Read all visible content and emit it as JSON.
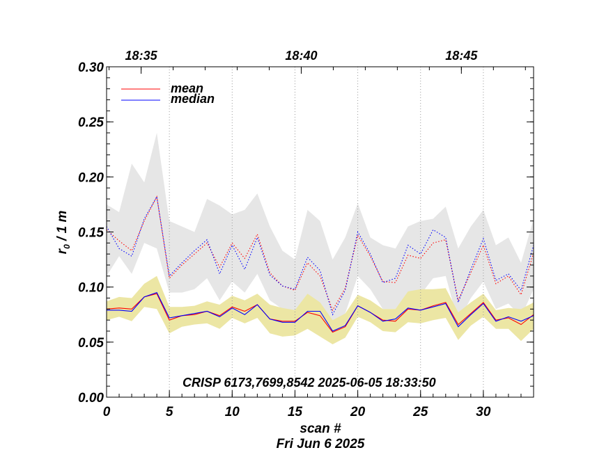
{
  "chart_data": {
    "type": "line",
    "ylabel_main": "r",
    "ylabel_sub": "0",
    "ylabel_rest": " / 1 m",
    "xlabel": "scan #",
    "date_label": "Fri Jun  6 2025",
    "annotation": "CRISP 6173,7699,8542 2025-06-05 18:33:50",
    "xlim": [
      0,
      34
    ],
    "ylim": [
      0.0,
      0.3
    ],
    "x_ticks": [
      0,
      5,
      10,
      15,
      20,
      25,
      30
    ],
    "x_tick_labels": [
      "0",
      "5",
      "10",
      "15",
      "20",
      "25",
      "30"
    ],
    "y_ticks": [
      0.0,
      0.05,
      0.1,
      0.15,
      0.2,
      0.25,
      0.3
    ],
    "y_tick_labels": [
      "0.00",
      "0.05",
      "0.10",
      "0.15",
      "0.20",
      "0.25",
      "0.30"
    ],
    "top_axis": [
      {
        "x": 2.75,
        "label": "18:35"
      },
      {
        "x": 15.5,
        "label": "18:40"
      },
      {
        "x": 28.25,
        "label": "18:45"
      }
    ],
    "vertical_dotted_lines": [
      5,
      10,
      15,
      20,
      25,
      30
    ],
    "legend": [
      {
        "name": "mean",
        "color": "#ff0000"
      },
      {
        "name": "median",
        "color": "#0000ff"
      }
    ],
    "x": [
      0,
      1,
      2,
      3,
      4,
      5,
      6,
      7,
      8,
      9,
      10,
      11,
      12,
      13,
      14,
      15,
      16,
      17,
      18,
      19,
      20,
      21,
      22,
      23,
      24,
      25,
      26,
      27,
      28,
      29,
      30,
      31,
      32,
      33,
      34
    ],
    "series": [
      {
        "name": "mean (upper)",
        "color": "#ff0000",
        "style": "dotted",
        "values": [
          0.152,
          0.142,
          0.133,
          0.16,
          0.182,
          0.108,
          0.12,
          0.13,
          0.14,
          0.118,
          0.14,
          0.126,
          0.148,
          0.113,
          0.101,
          0.097,
          0.122,
          0.11,
          0.079,
          0.099,
          0.147,
          0.128,
          0.105,
          0.104,
          0.129,
          0.126,
          0.14,
          0.143,
          0.088,
          0.113,
          0.138,
          0.103,
          0.11,
          0.093,
          0.131
        ]
      },
      {
        "name": "median (upper)",
        "color": "#0000ff",
        "style": "dotted",
        "values": [
          0.155,
          0.135,
          0.128,
          0.162,
          0.182,
          0.11,
          0.122,
          0.133,
          0.143,
          0.112,
          0.138,
          0.116,
          0.145,
          0.111,
          0.101,
          0.098,
          0.127,
          0.115,
          0.075,
          0.097,
          0.15,
          0.13,
          0.104,
          0.108,
          0.138,
          0.13,
          0.152,
          0.145,
          0.086,
          0.116,
          0.144,
          0.106,
          0.112,
          0.097,
          0.138
        ]
      },
      {
        "name": "mean",
        "color": "#ff0000",
        "style": "solid",
        "values": [
          0.08,
          0.081,
          0.08,
          0.091,
          0.094,
          0.07,
          0.074,
          0.075,
          0.078,
          0.074,
          0.082,
          0.078,
          0.084,
          0.071,
          0.069,
          0.069,
          0.077,
          0.074,
          0.059,
          0.064,
          0.083,
          0.077,
          0.07,
          0.069,
          0.08,
          0.079,
          0.083,
          0.086,
          0.066,
          0.076,
          0.086,
          0.07,
          0.072,
          0.066,
          0.075
        ]
      },
      {
        "name": "median",
        "color": "#0000ff",
        "style": "solid",
        "values": [
          0.079,
          0.079,
          0.078,
          0.091,
          0.095,
          0.072,
          0.074,
          0.076,
          0.078,
          0.073,
          0.081,
          0.075,
          0.084,
          0.071,
          0.068,
          0.068,
          0.078,
          0.078,
          0.06,
          0.065,
          0.083,
          0.077,
          0.069,
          0.071,
          0.081,
          0.079,
          0.082,
          0.085,
          0.064,
          0.075,
          0.085,
          0.069,
          0.073,
          0.069,
          0.074
        ]
      }
    ],
    "bands": [
      {
        "name": "upper range",
        "color": "#e6e6e6",
        "low": [
          0.11,
          0.128,
          0.112,
          0.14,
          0.135,
          0.095,
          0.095,
          0.098,
          0.108,
          0.088,
          0.105,
          0.095,
          0.112,
          0.088,
          0.08,
          0.078,
          0.09,
          0.085,
          0.063,
          0.076,
          0.11,
          0.098,
          0.08,
          0.08,
          0.095,
          0.093,
          0.108,
          0.11,
          0.068,
          0.09,
          0.105,
          0.08,
          0.085,
          0.073,
          0.098
        ],
        "high": [
          0.175,
          0.168,
          0.212,
          0.195,
          0.24,
          0.16,
          0.155,
          0.15,
          0.18,
          0.174,
          0.166,
          0.17,
          0.185,
          0.155,
          0.133,
          0.125,
          0.17,
          0.16,
          0.125,
          0.145,
          0.176,
          0.145,
          0.138,
          0.135,
          0.155,
          0.16,
          0.162,
          0.173,
          0.135,
          0.155,
          0.17,
          0.138,
          0.145,
          0.122,
          0.162
        ]
      },
      {
        "name": "lower range",
        "color": "#ece6a4",
        "low": [
          0.07,
          0.073,
          0.069,
          0.082,
          0.08,
          0.058,
          0.064,
          0.066,
          0.067,
          0.062,
          0.072,
          0.067,
          0.072,
          0.058,
          0.055,
          0.056,
          0.062,
          0.055,
          0.048,
          0.054,
          0.073,
          0.068,
          0.06,
          0.059,
          0.068,
          0.067,
          0.07,
          0.072,
          0.052,
          0.065,
          0.073,
          0.062,
          0.062,
          0.051,
          0.062
        ],
        "high": [
          0.087,
          0.091,
          0.09,
          0.103,
          0.11,
          0.082,
          0.082,
          0.083,
          0.087,
          0.084,
          0.092,
          0.088,
          0.094,
          0.084,
          0.081,
          0.079,
          0.094,
          0.086,
          0.07,
          0.076,
          0.093,
          0.088,
          0.08,
          0.08,
          0.096,
          0.098,
          0.098,
          0.099,
          0.077,
          0.086,
          0.094,
          0.079,
          0.081,
          0.08,
          0.086
        ]
      }
    ]
  }
}
